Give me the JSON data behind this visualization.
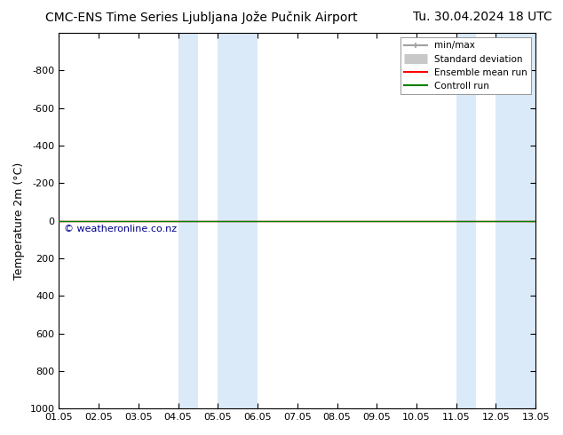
{
  "title_left": "CMC-ENS Time Series Ljubljana Jože Pučnik Airport",
  "title_right": "Tu. 30.04.2024 18 UTC",
  "ylabel": "Temperature 2m (°C)",
  "watermark": "© weatheronline.co.nz",
  "xlim": [
    0,
    12
  ],
  "ylim": [
    1000,
    -1000
  ],
  "yticks": [
    -800,
    -600,
    -400,
    -200,
    0,
    200,
    400,
    600,
    800,
    1000
  ],
  "xtick_labels": [
    "01.05",
    "02.05",
    "03.05",
    "04.05",
    "05.05",
    "06.05",
    "07.05",
    "08.05",
    "09.05",
    "10.05",
    "11.05",
    "12.05",
    "13.05"
  ],
  "xtick_positions": [
    0,
    1,
    2,
    3,
    4,
    5,
    6,
    7,
    8,
    9,
    10,
    11,
    12
  ],
  "shaded_bands": [
    {
      "xmin": 3,
      "xmax": 3.5,
      "color": "#daeaf8"
    },
    {
      "xmin": 4,
      "xmax": 5,
      "color": "#daeaf8"
    },
    {
      "xmin": 10,
      "xmax": 10.5,
      "color": "#daeaf8"
    },
    {
      "xmin": 11,
      "xmax": 12,
      "color": "#daeaf8"
    }
  ],
  "control_run_y": 0,
  "control_run_color": "#008000",
  "ensemble_mean_color": "#ff0000",
  "minmax_color": "#a0a0a0",
  "std_dev_color": "#c8c8c8",
  "background_color": "#ffffff",
  "legend_entries": [
    {
      "label": "min/max",
      "color": "#a0a0a0",
      "lw": 1.5,
      "type": "minmax"
    },
    {
      "label": "Standard deviation",
      "color": "#c8c8c8",
      "lw": 8,
      "type": "band"
    },
    {
      "label": "Ensemble mean run",
      "color": "#ff0000",
      "lw": 1.5,
      "type": "line"
    },
    {
      "label": "Controll run",
      "color": "#008000",
      "lw": 1.5,
      "type": "line"
    }
  ],
  "watermark_color": "#00008b",
  "title_fontsize": 10,
  "tick_fontsize": 8,
  "ylabel_fontsize": 9
}
